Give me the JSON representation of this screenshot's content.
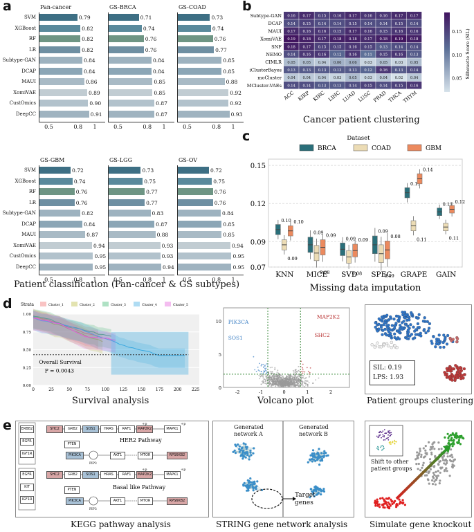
{
  "panel_letters": [
    "a",
    "b",
    "c",
    "d",
    "e"
  ],
  "panel_a": {
    "caption": "Patient classification (Pan-cancer & GS subtypes)",
    "methods_top": [
      "SVM",
      "XGBoost",
      "RF",
      "LR",
      "Subtype-GAN",
      "DCAP",
      "MAUI",
      "XomiVAE",
      "CustOmics",
      "DeepCC"
    ],
    "methods_bottom": [
      "SVM",
      "XGBoost",
      "RF",
      "LR",
      "Subtype-GAN",
      "DCAP",
      "MAUI",
      "XomiVAE",
      "CustOmics",
      "DeepCC"
    ],
    "ticks": [
      "0.5",
      "0.8",
      "1"
    ],
    "top_panels": [
      {
        "title": "Pan-cancer",
        "values": [
          0.79,
          0.82,
          0.82,
          0.82,
          0.84,
          0.84,
          0.86,
          0.89,
          0.9,
          0.91
        ]
      },
      {
        "title": "GS-BRCA",
        "values": [
          0.71,
          0.74,
          0.76,
          0.76,
          0.84,
          0.84,
          0.85,
          0.85,
          0.87,
          0.87
        ]
      },
      {
        "title": "GS-COAD",
        "values": [
          0.73,
          0.74,
          0.76,
          0.77,
          0.85,
          0.85,
          0.88,
          0.92,
          0.92,
          0.93
        ]
      }
    ],
    "bottom_panels": [
      {
        "title": "GS-GBM",
        "values": [
          0.72,
          0.74,
          0.76,
          0.76,
          0.82,
          0.84,
          0.87,
          0.94,
          0.95,
          0.95
        ]
      },
      {
        "title": "GS-LGG",
        "values": [
          0.73,
          0.75,
          0.77,
          0.77,
          0.83,
          0.87,
          0.88,
          0.93,
          0.93,
          0.94
        ]
      },
      {
        "title": "GS-OV",
        "values": [
          0.72,
          0.75,
          0.76,
          0.76,
          0.84,
          0.85,
          0.85,
          0.94,
          0.95,
          0.95
        ]
      }
    ],
    "bar_colors": [
      "#3d6f84",
      "#5a8a9c",
      "#6e9584",
      "#6e8fa2",
      "#9db2bf",
      "#8ba6b6",
      "#a8bac5",
      "#c1ccd2",
      "#b2c2cc",
      "#9fb3c0"
    ]
  },
  "panel_b": {
    "caption": "Cancer patient clustering",
    "rows": [
      "Subtype-GAN",
      "DCAP",
      "MAUI",
      "XomiVAE",
      "SNF",
      "NEMO",
      "CIMLR",
      "iClusterBayes",
      "moCluster",
      "MCluster-VAEs"
    ],
    "cols": [
      "ACC",
      "KIRP",
      "KIRC",
      "LIHC",
      "LUAD",
      "LUSC",
      "PRAD",
      "THCA",
      "THYM"
    ],
    "values": [
      [
        "0.16",
        "0.17",
        "0.15",
        "0.16",
        "0.17",
        "0.16",
        "0.16",
        "0.17",
        "0.17"
      ],
      [
        "0.14",
        "0.15",
        "0.14",
        "0.14",
        "0.15",
        "0.14",
        "0.14",
        "0.15",
        "0.14"
      ],
      [
        "0.17",
        "0.16",
        "0.16",
        "0.15",
        "0.17",
        "0.16",
        "0.15",
        "0.16",
        "0.16"
      ],
      [
        "0.19",
        "0.18",
        "0.17",
        "0.18",
        "0.18",
        "0.17",
        "0.18",
        "0.19",
        "0.18"
      ],
      [
        "0.18",
        "0.17",
        "0.15",
        "0.15",
        "0.16",
        "0.15",
        "0.13",
        "0.14",
        "0.14"
      ],
      [
        "0.14",
        "0.16",
        "0.16",
        "0.12",
        "0.16",
        "0.11",
        "0.15",
        "0.16",
        "0.13"
      ],
      [
        "0.05",
        "0.05",
        "0.04",
        "0.06",
        "0.06",
        "0.03",
        "0.05",
        "0.03",
        "0.05"
      ],
      [
        "0.13",
        "0.13",
        "0.13",
        "0.13",
        "0.13",
        "0.12",
        "0.16",
        "0.13",
        "0.14"
      ],
      [
        "0.04",
        "0.04",
        "0.04",
        "0.03",
        "0.05",
        "0.03",
        "0.04",
        "0.02",
        "0.04"
      ],
      [
        "0.14",
        "0.14",
        "0.13",
        "0.13",
        "0.14",
        "0.15",
        "0.14",
        "0.15",
        "0.16"
      ]
    ],
    "colorbar_label": "Silhouette Score (SIL)",
    "colorbar_ticks": [
      "0.15",
      "0.10",
      "0.05"
    ]
  },
  "panel_c": {
    "caption": "Missing data imputation",
    "legend_title": "Dataset",
    "legend": [
      {
        "name": "BRCA",
        "color": "#2a6f7a"
      },
      {
        "name": "COAD",
        "color": "#ecdcb5"
      },
      {
        "name": "GBM",
        "color": "#ec8a5e"
      }
    ],
    "y_ticks": [
      "0.15",
      "0.12",
      "0.09",
      "0.07"
    ],
    "groups": [
      "KNN",
      "MICE",
      "SVD",
      "SPEC",
      "GRAPE",
      "GAIN"
    ],
    "medians": [
      [
        "0.10",
        "0.09",
        "0.10"
      ],
      [
        "0.09",
        "0.08",
        "0.09"
      ],
      [
        "0.09",
        "0.08",
        "0.09"
      ],
      [
        "0.09",
        "0.09",
        "0.08"
      ],
      [
        "0.13",
        "0.11",
        "0.14"
      ],
      [
        "0.11",
        "0.11",
        "0.12"
      ]
    ]
  },
  "panel_d": {
    "survival": {
      "caption": "Survival analysis",
      "strata_label": "Strata",
      "strata": [
        {
          "name": "Cluster_1",
          "color": "#f06a6a"
        },
        {
          "name": "Cluster_2",
          "color": "#b8b83a"
        },
        {
          "name": "Cluster_3",
          "color": "#36b36b"
        },
        {
          "name": "Cluster_4",
          "color": "#38a8e0"
        },
        {
          "name": "Cluster_5",
          "color": "#e45ad9"
        }
      ],
      "y_ticks": [
        "1.00",
        "0.75",
        "0.50",
        "0.25",
        "0.00"
      ],
      "x_ticks": [
        "0",
        "25",
        "50",
        "75",
        "100",
        "125",
        "150",
        "175",
        "200",
        "225"
      ],
      "annotation_1": "Overall Survival",
      "annotation_2": "P = 0.0043"
    },
    "volcano": {
      "caption": "Volcano plot",
      "labels": [
        "PIK3CA",
        "SOS1",
        "MAP2K2",
        "SHC2"
      ],
      "y_ticks": [
        "10",
        "5",
        "0"
      ],
      "x_ticks": [
        "-2",
        "-1",
        "0",
        "1",
        "2"
      ]
    },
    "clustering": {
      "caption": "Patient groups clustering",
      "sil": "SIL: 0.19",
      "lps": "LPS: 1.93"
    }
  },
  "panel_e": {
    "kegg": {
      "caption": "KEGG pathway analysis",
      "pathway_1": "HER2 Pathway",
      "pathway_2": "Basal like Pathway",
      "phospho": "+p",
      "top_genes_left": [
        "ERBB2",
        "EGFR",
        "IGF1R"
      ],
      "bottom_genes_left": [
        "EGFR",
        "KIT",
        "IGF1R"
      ],
      "chain": [
        "SHC2",
        "GRB2",
        "SOS1",
        "HRAS",
        "RAF1",
        "MAP2K2",
        "MAPK1"
      ],
      "branch": [
        "PTEN",
        "PIK3CA",
        "PIP3",
        "AKT1",
        "MTOR",
        "RPS6KB2"
      ]
    },
    "string": {
      "caption": "STRING gene network analysis",
      "net_a": "Generated network A",
      "net_b": "Generated network B",
      "target": "Target genes"
    },
    "knockout": {
      "caption": "Simulate gene knockout",
      "shift": "Shift to other patient groups"
    }
  }
}
